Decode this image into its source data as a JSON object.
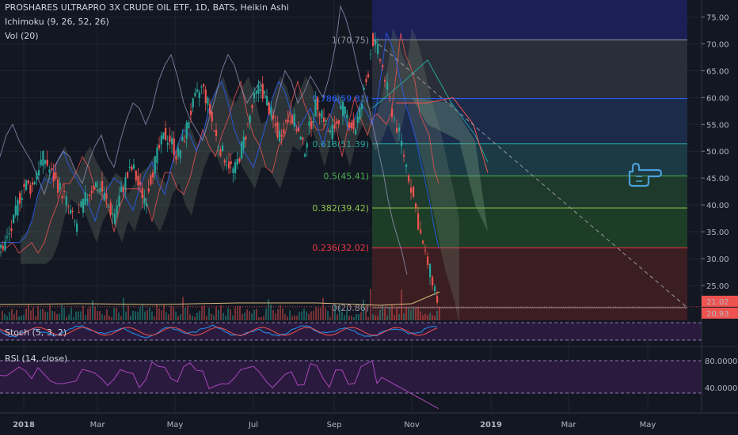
{
  "header": {
    "title": "PROSHARES ULTRAPRO 3X CRUDE OIL ETF, 1D, BATS, Heikin Ashi",
    "ichimoku": "Ichimoku (9, 26, 52, 26)",
    "volume": "Vol (20)"
  },
  "chart_data": {
    "type": "line",
    "price_axis": {
      "ticks": [
        "75.00",
        "70.00",
        "65.00",
        "60.00",
        "55.00",
        "50.00",
        "45.00",
        "40.00",
        "35.00",
        "30.00",
        "25.00"
      ],
      "min": 18.5,
      "max": 77
    },
    "last_price": "21.02",
    "prev_price": "20.93",
    "x_ticks": [
      "2018",
      "Mar",
      "May",
      "Jul",
      "Sep",
      "Nov",
      "2019",
      "Mar",
      "May"
    ],
    "fib_levels": [
      {
        "ratio": 1,
        "price": 70.75,
        "label": "1(70.75)",
        "color": "#9598a1",
        "fill": "#2a2e39"
      },
      {
        "ratio": 0.786,
        "price": 59.81,
        "label": "0.786(59.81)",
        "color": "#2962ff",
        "fill": "#1c2b4a"
      },
      {
        "ratio": 0.618,
        "price": 51.39,
        "label": "0.618(51.39)",
        "color": "#26a69a",
        "fill": "#1c3a44"
      },
      {
        "ratio": 0.5,
        "price": 45.41,
        "label": "0.5(45.41)",
        "color": "#4caf50",
        "fill": "#1e3a2c"
      },
      {
        "ratio": 0.382,
        "price": 39.42,
        "label": "0.382(39.42)",
        "color": "#8bc34a",
        "fill": "#1d3d26"
      },
      {
        "ratio": 0.236,
        "price": 32.02,
        "label": "0.236(32.02)",
        "color": "#f23645",
        "fill": "#3a1e22"
      },
      {
        "ratio": 0,
        "price": 20.86,
        "label": "0(20.86)",
        "color": "#9598a1",
        "fill": "#3d1d22"
      }
    ],
    "top_band_color": "#1a1f55",
    "price_series": [
      [
        0,
        32
      ],
      [
        8,
        33
      ],
      [
        16,
        36
      ],
      [
        24,
        41
      ],
      [
        32,
        44
      ],
      [
        40,
        43
      ],
      [
        48,
        47
      ],
      [
        56,
        49
      ],
      [
        64,
        46
      ],
      [
        72,
        44
      ],
      [
        80,
        42
      ],
      [
        88,
        39
      ],
      [
        96,
        36
      ],
      [
        104,
        40
      ],
      [
        112,
        42
      ],
      [
        120,
        44
      ],
      [
        128,
        43
      ],
      [
        136,
        40
      ],
      [
        144,
        38
      ],
      [
        152,
        42
      ],
      [
        160,
        45
      ],
      [
        168,
        47
      ],
      [
        176,
        43
      ],
      [
        184,
        41
      ],
      [
        192,
        46
      ],
      [
        200,
        50
      ],
      [
        208,
        53
      ],
      [
        216,
        52
      ],
      [
        224,
        49
      ],
      [
        232,
        52
      ],
      [
        240,
        57
      ],
      [
        248,
        60
      ],
      [
        256,
        62
      ],
      [
        264,
        58
      ],
      [
        272,
        53
      ],
      [
        280,
        50
      ],
      [
        288,
        48
      ],
      [
        296,
        46
      ],
      [
        304,
        50
      ],
      [
        312,
        54
      ],
      [
        320,
        59
      ],
      [
        328,
        62
      ],
      [
        336,
        60
      ],
      [
        344,
        56
      ],
      [
        352,
        53
      ],
      [
        360,
        55
      ],
      [
        368,
        57
      ],
      [
        376,
        54
      ],
      [
        384,
        50
      ],
      [
        392,
        55
      ],
      [
        400,
        59
      ],
      [
        408,
        57
      ],
      [
        416,
        53
      ],
      [
        424,
        55
      ],
      [
        432,
        58
      ],
      [
        440,
        56
      ],
      [
        448,
        54
      ],
      [
        456,
        58
      ],
      [
        464,
        64
      ],
      [
        470,
        71
      ],
      [
        476,
        69
      ],
      [
        482,
        66
      ],
      [
        488,
        62
      ],
      [
        494,
        58
      ],
      [
        500,
        55
      ],
      [
        506,
        52
      ],
      [
        512,
        48
      ],
      [
        518,
        44
      ],
      [
        524,
        40
      ],
      [
        530,
        35
      ],
      [
        536,
        31
      ],
      [
        542,
        28
      ],
      [
        548,
        25
      ],
      [
        554,
        21
      ]
    ],
    "oscillators": {
      "stoch": {
        "label": "Stoch (5, 3, 2)"
      },
      "rsi": {
        "label": "RSI (14, close)",
        "ticks": [
          "80.0000",
          "40.0000"
        ]
      }
    }
  }
}
